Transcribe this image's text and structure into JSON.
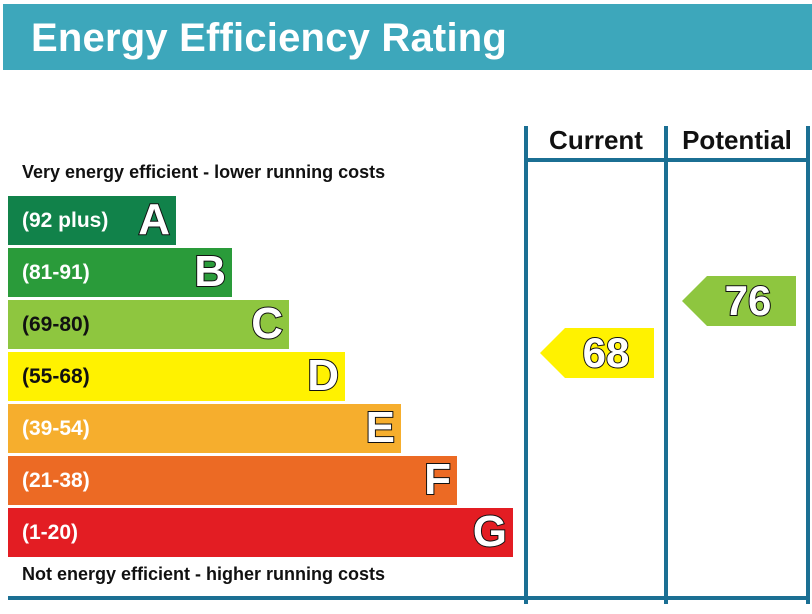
{
  "chart_data": {
    "type": "bar",
    "title": "Energy Efficiency Rating",
    "top_caption": "Very energy efficient - lower running costs",
    "bottom_caption": "Not energy efficient - higher running costs",
    "columns": [
      "Current",
      "Potential"
    ],
    "bands": [
      {
        "range": "(92 plus)",
        "letter": "A",
        "min": 92,
        "max": 100,
        "color": "#11824a"
      },
      {
        "range": "(81-91)",
        "letter": "B",
        "min": 81,
        "max": 91,
        "color": "#2a9b3a"
      },
      {
        "range": "(69-80)",
        "letter": "C",
        "min": 69,
        "max": 80,
        "color": "#8ec63f"
      },
      {
        "range": "(55-68)",
        "letter": "D",
        "min": 55,
        "max": 68,
        "color": "#fff200"
      },
      {
        "range": "(39-54)",
        "letter": "E",
        "min": 39,
        "max": 54,
        "color": "#f6ae2d"
      },
      {
        "range": "(21-38)",
        "letter": "F",
        "min": 21,
        "max": 38,
        "color": "#ec6a24"
      },
      {
        "range": "(1-20)",
        "letter": "G",
        "min": 1,
        "max": 20,
        "color": "#e31d23"
      }
    ],
    "ratings": [
      {
        "label": "Current",
        "value": 68,
        "band": "D",
        "color": "#fff200"
      },
      {
        "label": "Potential",
        "value": 76,
        "band": "C",
        "color": "#8ec63f"
      }
    ]
  }
}
